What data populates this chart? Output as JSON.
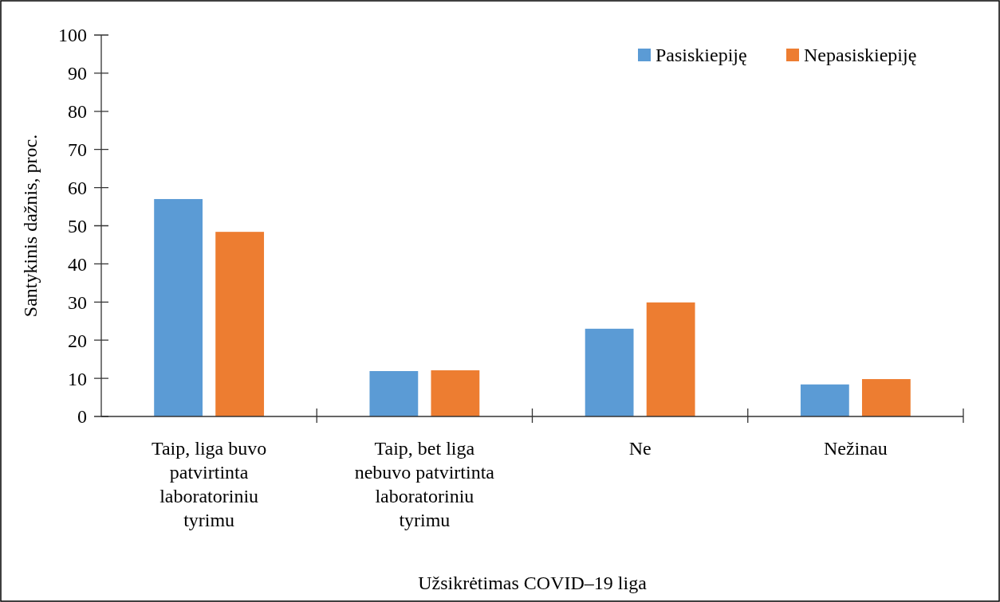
{
  "chart_data": {
    "type": "bar",
    "xlabel": "Užsikrėtimas COVID–19 liga",
    "ylabel": "Santykinis dažnis, proc.",
    "categories": [
      "Taip, liga buvo patvirtinta laboratoriniu tyrimu",
      "Taip, bet liga nebuvo patvirtinta laboratoriniu tyrimu",
      "Ne",
      "Nežinau"
    ],
    "series": [
      {
        "name": "Pasiskiepiję",
        "color": "#5b9bd5",
        "values": [
          57.0,
          11.9,
          23.0,
          8.4
        ]
      },
      {
        "name": "Nepasiskiepiję",
        "color": "#ed7d31",
        "values": [
          48.4,
          12.1,
          29.9,
          9.8
        ]
      }
    ],
    "ylim": [
      0,
      100
    ],
    "yticks": [
      0,
      10,
      20,
      30,
      40,
      50,
      60,
      70,
      80,
      90,
      100
    ],
    "grid": false,
    "legend": "top right"
  }
}
